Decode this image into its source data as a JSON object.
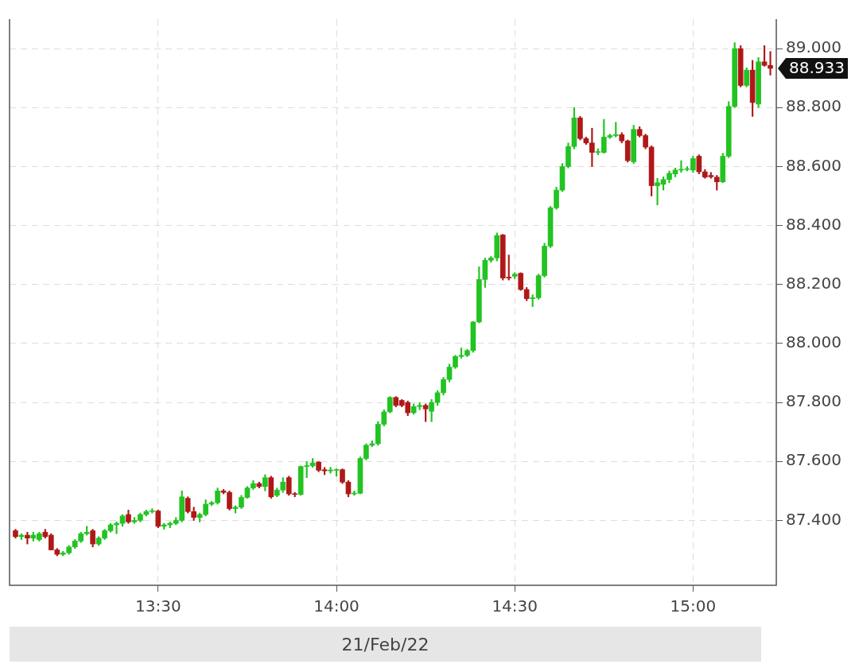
{
  "chart_data": {
    "type": "candlestick",
    "xlabel": "21/Feb/22",
    "x": [
      "--02-21T13:06",
      "--02-21T13:07",
      "--02-21T13:08",
      "--02-21T13:09",
      "--02-21T13:10",
      "--02-21T13:11",
      "--02-21T13:12",
      "--02-21T13:13",
      "--02-21T13:14",
      "--02-21T13:15",
      "--02-21T13:16",
      "--02-21T13:17",
      "--02-21T13:18",
      "--02-21T13:19",
      "--02-21T13:20",
      "--02-21T13:21",
      "--02-21T13:22",
      "--02-21T13:23",
      "--02-21T13:24",
      "--02-21T13:25",
      "--02-21T13:26",
      "--02-21T13:27",
      "--02-21T13:28",
      "--02-21T13:29",
      "--02-21T13:30",
      "--02-21T13:31",
      "--02-21T13:32",
      "--02-21T13:33",
      "--02-21T13:34",
      "--02-21T13:35",
      "--02-21T13:36",
      "--02-21T13:37",
      "--02-21T13:38",
      "--02-21T13:39",
      "--02-21T13:40",
      "--02-21T13:41",
      "--02-21T13:42",
      "--02-21T13:43",
      "--02-21T13:44",
      "--02-21T13:45",
      "--02-21T13:46",
      "--02-21T13:47",
      "--02-21T13:48",
      "--02-21T13:49",
      "--02-21T13:50",
      "--02-21T13:51",
      "--02-21T13:52",
      "--02-21T13:53",
      "--02-21T13:54",
      "--02-21T13:55",
      "--02-21T13:56",
      "--02-21T13:57",
      "--02-21T13:58",
      "--02-21T13:59",
      "--02-21T14:00",
      "--02-21T14:01",
      "--02-21T14:02",
      "--02-21T14:03",
      "--02-21T14:04",
      "--02-21T14:05",
      "--02-21T14:06",
      "--02-21T14:07",
      "--02-21T14:08",
      "--02-21T14:09",
      "--02-21T14:10",
      "--02-21T14:11",
      "--02-21T14:12",
      "--02-21T14:13",
      "--02-21T14:14",
      "--02-21T14:15",
      "--02-21T14:16",
      "--02-21T14:17",
      "--02-21T14:18",
      "--02-21T14:19",
      "--02-21T14:20",
      "--02-21T14:21",
      "--02-21T14:22",
      "--02-21T14:23",
      "--02-21T14:24",
      "--02-21T14:25",
      "--02-21T14:26",
      "--02-21T14:27",
      "--02-21T14:28",
      "--02-21T14:29",
      "--02-21T14:30",
      "--02-21T14:31",
      "--02-21T14:32",
      "--02-21T14:33",
      "--02-21T14:34",
      "--02-21T14:35",
      "--02-21T14:36",
      "--02-21T14:37",
      "--02-21T14:38",
      "--02-21T14:39",
      "--02-21T14:40",
      "--02-21T14:41",
      "--02-21T14:42",
      "--02-21T14:43",
      "--02-21T14:44",
      "--02-21T14:45",
      "--02-21T14:46",
      "--02-21T14:47",
      "--02-21T14:48",
      "--02-21T14:49",
      "--02-21T14:50",
      "--02-21T14:51",
      "--02-21T14:52",
      "--02-21T14:53",
      "--02-21T14:54",
      "--02-21T14:55",
      "--02-21T14:56",
      "--02-21T14:57",
      "--02-21T14:58",
      "--02-21T14:59",
      "--02-21T15:00",
      "--02-21T15:01",
      "--02-21T15:02",
      "--02-21T15:03",
      "--02-21T15:04",
      "--02-21T15:05",
      "--02-21T15:06",
      "--02-21T15:07",
      "--02-21T15:08",
      "--02-21T15:09",
      "--02-21T15:10",
      "--02-21T15:11",
      "--02-21T15:12",
      "--02-21T15:13"
    ],
    "ohlc": [
      [
        87.365,
        87.37,
        87.34,
        87.345
      ],
      [
        87.345,
        87.355,
        87.335,
        87.35
      ],
      [
        87.35,
        87.36,
        87.32,
        87.34
      ],
      [
        87.34,
        87.36,
        87.33,
        87.35
      ],
      [
        87.335,
        87.36,
        87.33,
        87.355
      ],
      [
        87.36,
        87.37,
        87.34,
        87.345
      ],
      [
        87.35,
        87.355,
        87.3,
        87.3
      ],
      [
        87.3,
        87.305,
        87.28,
        87.285
      ],
      [
        87.285,
        87.295,
        87.28,
        87.29
      ],
      [
        87.29,
        87.315,
        87.285,
        87.31
      ],
      [
        87.31,
        87.335,
        87.305,
        87.33
      ],
      [
        87.33,
        87.36,
        87.325,
        87.355
      ],
      [
        87.355,
        87.38,
        87.35,
        87.36
      ],
      [
        87.365,
        87.37,
        87.31,
        87.32
      ],
      [
        87.32,
        87.345,
        87.315,
        87.34
      ],
      [
        87.34,
        87.37,
        87.335,
        87.365
      ],
      [
        87.365,
        87.39,
        87.36,
        87.385
      ],
      [
        87.385,
        87.395,
        87.355,
        87.39
      ],
      [
        87.39,
        87.42,
        87.38,
        87.415
      ],
      [
        87.42,
        87.435,
        87.39,
        87.395
      ],
      [
        87.395,
        87.41,
        87.39,
        87.4
      ],
      [
        87.4,
        87.425,
        87.395,
        87.42
      ],
      [
        87.42,
        87.435,
        87.415,
        87.43
      ],
      [
        87.43,
        87.44,
        87.425,
        87.432
      ],
      [
        87.432,
        87.435,
        87.375,
        87.38
      ],
      [
        87.38,
        87.39,
        87.37,
        87.385
      ],
      [
        87.385,
        87.395,
        87.375,
        87.39
      ],
      [
        87.39,
        87.41,
        87.385,
        87.4
      ],
      [
        87.4,
        87.5,
        87.395,
        87.48
      ],
      [
        87.475,
        87.48,
        87.425,
        87.43
      ],
      [
        87.43,
        87.445,
        87.4,
        87.41
      ],
      [
        87.41,
        87.425,
        87.395,
        87.42
      ],
      [
        87.42,
        87.47,
        87.415,
        87.455
      ],
      [
        87.455,
        87.465,
        87.45,
        87.46
      ],
      [
        87.46,
        87.51,
        87.455,
        87.5
      ],
      [
        87.5,
        87.505,
        87.49,
        87.495
      ],
      [
        87.495,
        87.5,
        87.435,
        87.44
      ],
      [
        87.44,
        87.45,
        87.425,
        87.445
      ],
      [
        87.445,
        87.485,
        87.44,
        87.478
      ],
      [
        87.478,
        87.515,
        87.475,
        87.51
      ],
      [
        87.51,
        87.535,
        87.505,
        87.525
      ],
      [
        87.525,
        87.53,
        87.51,
        87.515
      ],
      [
        87.515,
        87.555,
        87.5,
        87.545
      ],
      [
        87.545,
        87.55,
        87.475,
        87.48
      ],
      [
        87.485,
        87.51,
        87.48,
        87.503
      ],
      [
        87.503,
        87.545,
        87.495,
        87.53
      ],
      [
        87.545,
        87.55,
        87.485,
        87.49
      ],
      [
        87.49,
        87.495,
        87.48,
        87.488
      ],
      [
        87.488,
        87.585,
        87.485,
        87.583
      ],
      [
        87.583,
        87.6,
        87.545,
        87.585
      ],
      [
        87.585,
        87.61,
        87.58,
        87.595
      ],
      [
        87.598,
        87.6,
        87.565,
        87.57
      ],
      [
        87.572,
        87.58,
        87.555,
        87.568
      ],
      [
        87.568,
        87.58,
        87.56,
        87.57
      ],
      [
        87.57,
        87.575,
        87.55,
        87.572
      ],
      [
        87.572,
        87.575,
        87.525,
        87.53
      ],
      [
        87.53,
        87.535,
        87.48,
        87.49
      ],
      [
        87.49,
        87.5,
        87.485,
        87.492
      ],
      [
        87.492,
        87.615,
        87.49,
        87.61
      ],
      [
        87.61,
        87.66,
        87.605,
        87.655
      ],
      [
        87.655,
        87.67,
        87.65,
        87.66
      ],
      [
        87.66,
        87.735,
        87.655,
        87.726
      ],
      [
        87.726,
        87.775,
        87.72,
        87.768
      ],
      [
        87.768,
        87.82,
        87.765,
        87.817
      ],
      [
        87.817,
        87.82,
        87.785,
        87.79
      ],
      [
        87.807,
        87.81,
        87.785,
        87.79
      ],
      [
        87.8,
        87.805,
        87.755,
        87.765
      ],
      [
        87.765,
        87.795,
        87.76,
        87.786
      ],
      [
        87.786,
        87.8,
        87.775,
        87.79
      ],
      [
        87.79,
        87.795,
        87.735,
        87.778
      ],
      [
        87.77,
        87.81,
        87.735,
        87.8
      ],
      [
        87.8,
        87.84,
        87.79,
        87.833
      ],
      [
        87.833,
        87.885,
        87.825,
        87.878
      ],
      [
        87.878,
        87.93,
        87.87,
        87.92
      ],
      [
        87.92,
        87.96,
        87.915,
        87.956
      ],
      [
        87.956,
        87.985,
        87.95,
        87.96
      ],
      [
        87.96,
        87.98,
        87.955,
        87.976
      ],
      [
        87.976,
        88.075,
        87.97,
        88.073
      ],
      [
        88.073,
        88.26,
        88.07,
        88.217
      ],
      [
        88.217,
        88.29,
        88.19,
        88.282
      ],
      [
        88.282,
        88.295,
        88.275,
        88.29
      ],
      [
        88.29,
        88.375,
        88.28,
        88.366
      ],
      [
        88.368,
        88.37,
        88.215,
        88.222
      ],
      [
        88.225,
        88.3,
        88.215,
        88.222
      ],
      [
        88.228,
        88.24,
        88.22,
        88.235
      ],
      [
        88.238,
        88.24,
        88.18,
        88.183
      ],
      [
        88.183,
        88.19,
        88.145,
        88.152
      ],
      [
        88.152,
        88.165,
        88.125,
        88.155
      ],
      [
        88.155,
        88.235,
        88.15,
        88.23
      ],
      [
        88.23,
        88.34,
        88.225,
        88.33
      ],
      [
        88.33,
        88.465,
        88.325,
        88.46
      ],
      [
        88.46,
        88.53,
        88.455,
        88.52
      ],
      [
        88.52,
        88.61,
        88.515,
        88.6
      ],
      [
        88.6,
        88.68,
        88.595,
        88.668
      ],
      [
        88.668,
        88.8,
        88.66,
        88.765
      ],
      [
        88.765,
        88.77,
        88.69,
        88.695
      ],
      [
        88.695,
        88.7,
        88.675,
        88.68
      ],
      [
        88.68,
        88.73,
        88.6,
        88.648
      ],
      [
        88.648,
        88.66,
        88.64,
        88.65
      ],
      [
        88.648,
        88.76,
        88.645,
        88.7
      ],
      [
        88.7,
        88.71,
        88.695,
        88.705
      ],
      [
        88.705,
        88.75,
        88.7,
        88.708
      ],
      [
        88.708,
        88.715,
        88.68,
        88.687
      ],
      [
        88.687,
        88.69,
        88.615,
        88.62
      ],
      [
        88.616,
        88.74,
        88.61,
        88.726
      ],
      [
        88.726,
        88.735,
        88.7,
        88.705
      ],
      [
        88.705,
        88.71,
        88.66,
        88.666
      ],
      [
        88.666,
        88.67,
        88.5,
        88.535
      ],
      [
        88.535,
        88.56,
        88.47,
        88.545
      ],
      [
        88.54,
        88.565,
        88.52,
        88.556
      ],
      [
        88.556,
        88.585,
        88.545,
        88.577
      ],
      [
        88.575,
        88.595,
        88.565,
        88.588
      ],
      [
        88.588,
        88.62,
        88.58,
        88.59
      ],
      [
        88.59,
        88.6,
        88.585,
        88.592
      ],
      [
        88.588,
        88.635,
        88.58,
        88.627
      ],
      [
        88.635,
        88.64,
        88.575,
        88.582
      ],
      [
        88.582,
        88.59,
        88.56,
        88.564
      ],
      [
        88.57,
        88.58,
        88.56,
        88.565
      ],
      [
        88.564,
        88.57,
        88.52,
        88.548
      ],
      [
        88.548,
        88.645,
        88.545,
        88.635
      ],
      [
        88.635,
        88.82,
        88.63,
        88.804
      ],
      [
        88.804,
        89.02,
        88.8,
        89.0
      ],
      [
        89.0,
        89.01,
        88.87,
        88.875
      ],
      [
        88.875,
        88.935,
        88.87,
        88.927
      ],
      [
        88.927,
        88.96,
        88.77,
        88.817
      ],
      [
        88.812,
        88.97,
        88.8,
        88.955
      ],
      [
        88.955,
        89.01,
        88.94,
        88.943
      ],
      [
        88.943,
        88.99,
        88.91,
        88.933
      ]
    ],
    "colors": [
      "#b01818",
      "#22c322",
      "#b01818",
      "#22c322",
      "#22c322",
      "#b01818",
      "#b01818",
      "#b01818",
      "#22c322",
      "#22c322",
      "#22c322",
      "#22c322",
      "#22c322",
      "#b01818",
      "#22c322",
      "#22c322",
      "#22c322",
      "#22c322",
      "#22c322",
      "#b01818",
      "#22c322",
      "#22c322",
      "#22c322",
      "#22c322",
      "#b01818",
      "#22c322",
      "#22c322",
      "#22c322",
      "#22c322",
      "#b01818",
      "#b01818",
      "#22c322",
      "#22c322",
      "#22c322",
      "#22c322",
      "#b01818",
      "#b01818",
      "#22c322",
      "#22c322",
      "#22c322",
      "#22c322",
      "#b01818",
      "#22c322",
      "#b01818",
      "#22c322",
      "#22c322",
      "#b01818",
      "#b01818",
      "#22c322",
      "#22c322",
      "#22c322",
      "#b01818",
      "#b01818",
      "#22c322",
      "#22c322",
      "#b01818",
      "#b01818",
      "#22c322",
      "#22c322",
      "#22c322",
      "#22c322",
      "#22c322",
      "#22c322",
      "#22c322",
      "#b01818",
      "#b01818",
      "#b01818",
      "#22c322",
      "#22c322",
      "#b01818",
      "#22c322",
      "#22c322",
      "#22c322",
      "#22c322",
      "#22c322",
      "#22c322",
      "#22c322",
      "#22c322",
      "#22c322",
      "#22c322",
      "#22c322",
      "#22c322",
      "#b01818",
      "#b01818",
      "#22c322",
      "#b01818",
      "#b01818",
      "#22c322",
      "#22c322",
      "#22c322",
      "#22c322",
      "#22c322",
      "#22c322",
      "#22c322",
      "#22c322",
      "#b01818",
      "#b01818",
      "#b01818",
      "#22c322",
      "#22c322",
      "#22c322",
      "#22c322",
      "#b01818",
      "#b01818",
      "#22c322",
      "#b01818",
      "#b01818",
      "#b01818",
      "#22c322",
      "#22c322",
      "#22c322",
      "#22c322",
      "#22c322",
      "#22c322",
      "#22c322",
      "#b01818",
      "#b01818",
      "#b01818",
      "#b01818",
      "#22c322",
      "#22c322",
      "#22c322",
      "#b01818",
      "#22c322",
      "#b01818",
      "#22c322",
      "#b01818",
      "#b01818"
    ],
    "xlim": [
      "--02-21T13:05",
      "--02-21T15:14"
    ],
    "xticks": [
      {
        "value": "--02-21T13:30",
        "label": "13:30"
      },
      {
        "value": "--02-21T14:00",
        "label": "14:00"
      },
      {
        "value": "--02-21T14:30",
        "label": "14:30"
      },
      {
        "value": "--02-21T15:00",
        "label": "15:00"
      }
    ],
    "ylim": [
      87.18,
      89.1
    ],
    "yticks": [
      {
        "value": 87.4,
        "label": "87.400"
      },
      {
        "value": 87.6,
        "label": "87.600"
      },
      {
        "value": 87.8,
        "label": "87.800"
      },
      {
        "value": 88,
        "label": "88.000"
      },
      {
        "value": 88.2,
        "label": "88.200"
      },
      {
        "value": 88.4,
        "label": "88.400"
      },
      {
        "value": 88.6,
        "label": "88.600"
      },
      {
        "value": 88.8,
        "label": "88.800"
      },
      {
        "value": 89,
        "label": "89.000"
      }
    ],
    "annotations": [
      "88.933"
    ],
    "grid": true
  }
}
